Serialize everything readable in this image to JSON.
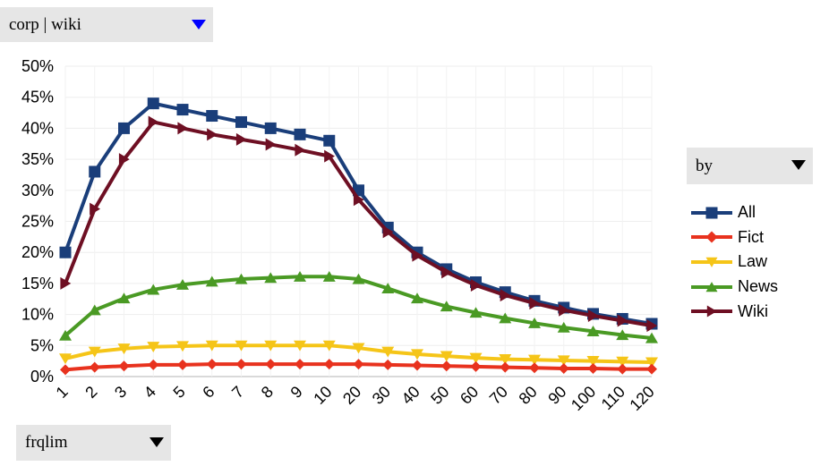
{
  "corpus_select": {
    "value": "corp | wiki"
  },
  "by_select": {
    "value": "by"
  },
  "frqlim_select": {
    "value": "frqlim"
  },
  "chart_data": {
    "type": "line",
    "title": "",
    "xlabel": "",
    "ylabel": "",
    "categories": [
      "1",
      "2",
      "3",
      "4",
      "5",
      "6",
      "7",
      "8",
      "9",
      "10",
      "20",
      "30",
      "40",
      "50",
      "60",
      "70",
      "80",
      "90",
      "100",
      "110",
      "120"
    ],
    "ylim": [
      0,
      0.5
    ],
    "y_ticks": [
      "0%",
      "5%",
      "10%",
      "15%",
      "20%",
      "25%",
      "30%",
      "35%",
      "40%",
      "45%",
      "50%"
    ],
    "grid": true,
    "legend_position": "right",
    "series": [
      {
        "name": "All",
        "color": "#1a3e7a",
        "marker": "square",
        "values": [
          0.2,
          0.33,
          0.4,
          0.44,
          0.43,
          0.42,
          0.41,
          0.4,
          0.39,
          0.38,
          0.3,
          0.24,
          0.2,
          0.173,
          0.152,
          0.136,
          0.122,
          0.111,
          0.101,
          0.093,
          0.085
        ]
      },
      {
        "name": "Fict",
        "color": "#e8321e",
        "marker": "diamond",
        "values": [
          0.011,
          0.015,
          0.017,
          0.019,
          0.019,
          0.02,
          0.02,
          0.02,
          0.02,
          0.02,
          0.02,
          0.019,
          0.018,
          0.017,
          0.016,
          0.015,
          0.014,
          0.013,
          0.013,
          0.012,
          0.012
        ]
      },
      {
        "name": "Law",
        "color": "#f5c518",
        "marker": "triangle-down",
        "values": [
          0.029,
          0.04,
          0.045,
          0.048,
          0.049,
          0.05,
          0.05,
          0.05,
          0.05,
          0.05,
          0.046,
          0.04,
          0.036,
          0.033,
          0.03,
          0.028,
          0.027,
          0.026,
          0.025,
          0.024,
          0.023
        ]
      },
      {
        "name": "News",
        "color": "#4a9a24",
        "marker": "triangle-up",
        "values": [
          0.066,
          0.107,
          0.126,
          0.14,
          0.148,
          0.153,
          0.157,
          0.159,
          0.161,
          0.161,
          0.157,
          0.142,
          0.126,
          0.113,
          0.103,
          0.094,
          0.086,
          0.079,
          0.073,
          0.067,
          0.062
        ]
      },
      {
        "name": "Wiki",
        "color": "#6e0f23",
        "marker": "triangle-right",
        "values": [
          0.15,
          0.27,
          0.35,
          0.41,
          0.4,
          0.39,
          0.382,
          0.374,
          0.365,
          0.355,
          0.285,
          0.233,
          0.195,
          0.168,
          0.147,
          0.131,
          0.118,
          0.107,
          0.098,
          0.09,
          0.082
        ]
      }
    ]
  }
}
